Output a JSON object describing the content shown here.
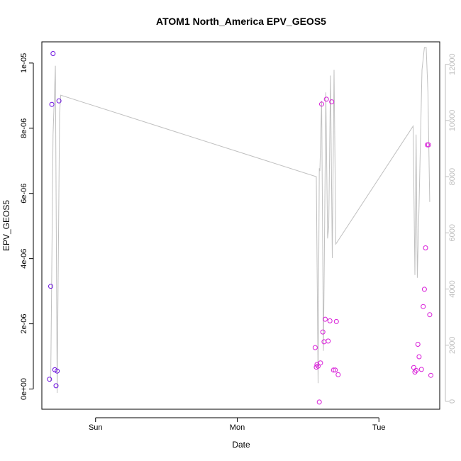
{
  "chart_data": {
    "type": "scatter",
    "title": "ATOM1 North_America EPV_GEOS5",
    "xlabel": "Date",
    "ylabel": "EPV_GEOS5",
    "x_ticks": [
      {
        "label": "Sun",
        "value": 24
      },
      {
        "label": "Mon",
        "value": 48
      },
      {
        "label": "Tue",
        "value": 72
      }
    ],
    "x_range": [
      14.9,
      82.3
    ],
    "y_left": {
      "range": [
        -6.2e-07,
        1.065e-05
      ],
      "ticks": [
        {
          "label": "0e+00",
          "value": 0
        },
        {
          "label": "2e-06",
          "value": 2e-06
        },
        {
          "label": "4e-06",
          "value": 4e-06
        },
        {
          "label": "6e-06",
          "value": 6e-06
        },
        {
          "label": "8e-06",
          "value": 8e-06
        },
        {
          "label": "1e-05",
          "value": 1e-05
        }
      ]
    },
    "y_right": {
      "range": [
        -280,
        12800
      ],
      "ticks": [
        {
          "label": "0",
          "value": 0
        },
        {
          "label": "2000",
          "value": 2000
        },
        {
          "label": "4000",
          "value": 4000
        },
        {
          "label": "6000",
          "value": 6000
        },
        {
          "label": "8000",
          "value": 8000
        },
        {
          "label": "10000",
          "value": 10000
        },
        {
          "label": "12000",
          "value": 12000
        }
      ],
      "color": "#bdbdbd"
    },
    "grid": false,
    "series": [
      {
        "type": "scatter",
        "marker": "open-circle",
        "points": [
          {
            "x": 16.2,
            "y": 3e-07,
            "color": "#6a0dde"
          },
          {
            "x": 16.4,
            "y": 3.15e-06,
            "color": "#6a0dde"
          },
          {
            "x": 16.6,
            "y": 8.73e-06,
            "color": "#6a0dde"
          },
          {
            "x": 16.8,
            "y": 1.029e-05,
            "color": "#6a0dde"
          },
          {
            "x": 17.1,
            "y": 5.9e-07,
            "color": "#6a0dde"
          },
          {
            "x": 17.3,
            "y": 1e-07,
            "color": "#6a0dde"
          },
          {
            "x": 17.5,
            "y": 5.5e-07,
            "color": "#6a0dde"
          },
          {
            "x": 17.8,
            "y": 8.84e-06,
            "color": "#6a0dde"
          },
          {
            "x": 61.2,
            "y": 1.27e-06,
            "color": "#d81bd8"
          },
          {
            "x": 61.4,
            "y": 6.7e-07,
            "color": "#d81bd8"
          },
          {
            "x": 61.5,
            "y": 7.5e-07,
            "color": "#d81bd8"
          },
          {
            "x": 61.7,
            "y": 7e-07,
            "color": "#d81bd8"
          },
          {
            "x": 61.9,
            "y": -4e-07,
            "color": "#d81bd8"
          },
          {
            "x": 62.1,
            "y": 8e-07,
            "color": "#d81bd8"
          },
          {
            "x": 62.3,
            "y": 8.74e-06,
            "color": "#d81bd8"
          },
          {
            "x": 62.5,
            "y": 1.75e-06,
            "color": "#d81bd8"
          },
          {
            "x": 62.7,
            "y": 1.45e-06,
            "color": "#d81bd8"
          },
          {
            "x": 62.9,
            "y": 2.14e-06,
            "color": "#d81bd8"
          },
          {
            "x": 63.1,
            "y": 8.89e-06,
            "color": "#d81bd8"
          },
          {
            "x": 63.4,
            "y": 1.47e-06,
            "color": "#d81bd8"
          },
          {
            "x": 63.7,
            "y": 2.09e-06,
            "color": "#d81bd8"
          },
          {
            "x": 64.0,
            "y": 8.81e-06,
            "color": "#d81bd8"
          },
          {
            "x": 64.3,
            "y": 5.8e-07,
            "color": "#d81bd8"
          },
          {
            "x": 64.6,
            "y": 5.8e-07,
            "color": "#d81bd8"
          },
          {
            "x": 64.8,
            "y": 2.07e-06,
            "color": "#d81bd8"
          },
          {
            "x": 65.1,
            "y": 4.4e-07,
            "color": "#d81bd8"
          },
          {
            "x": 77.9,
            "y": 6.6e-07,
            "color": "#d81bd8"
          },
          {
            "x": 78.1,
            "y": 5.2e-07,
            "color": "#d81bd8"
          },
          {
            "x": 78.3,
            "y": 5.7e-07,
            "color": "#d81bd8"
          },
          {
            "x": 78.6,
            "y": 1.37e-06,
            "color": "#d81bd8"
          },
          {
            "x": 78.8,
            "y": 9.9e-07,
            "color": "#d81bd8"
          },
          {
            "x": 79.2,
            "y": 6e-07,
            "color": "#d81bd8"
          },
          {
            "x": 79.5,
            "y": 2.53e-06,
            "color": "#d81bd8"
          },
          {
            "x": 79.7,
            "y": 3.06e-06,
            "color": "#d81bd8"
          },
          {
            "x": 79.9,
            "y": 4.33e-06,
            "color": "#d81bd8"
          },
          {
            "x": 80.2,
            "y": 7.49e-06,
            "color": "#d81bd8"
          },
          {
            "x": 80.4,
            "y": 7.49e-06,
            "color": "#d81bd8"
          },
          {
            "x": 80.6,
            "y": 2.28e-06,
            "color": "#d81bd8"
          },
          {
            "x": 80.8,
            "y": 4.2e-07,
            "color": "#d81bd8"
          }
        ]
      },
      {
        "type": "line",
        "axis": "right",
        "color": "#c0c0c0",
        "points": [
          {
            "x": 16.4,
            "y": 700
          },
          {
            "x": 16.8,
            "y": 9500
          },
          {
            "x": 17.2,
            "y": 11950
          },
          {
            "x": 17.5,
            "y": 300
          },
          {
            "x": 17.9,
            "y": 10250
          },
          {
            "x": 18.1,
            "y": 10900
          },
          {
            "x": 61.4,
            "y": 8000
          },
          {
            "x": 61.7,
            "y": 650
          },
          {
            "x": 61.9,
            "y": 8300
          },
          {
            "x": 62.0,
            "y": 8200
          },
          {
            "x": 62.3,
            "y": 10700
          },
          {
            "x": 62.6,
            "y": 1800
          },
          {
            "x": 62.8,
            "y": 6200
          },
          {
            "x": 63.0,
            "y": 11000
          },
          {
            "x": 63.3,
            "y": 5800
          },
          {
            "x": 63.5,
            "y": 6200
          },
          {
            "x": 63.8,
            "y": 11600
          },
          {
            "x": 64.1,
            "y": 5100
          },
          {
            "x": 64.4,
            "y": 11800
          },
          {
            "x": 64.7,
            "y": 5600
          },
          {
            "x": 77.8,
            "y": 9800
          },
          {
            "x": 78.1,
            "y": 4500
          },
          {
            "x": 78.3,
            "y": 9500
          },
          {
            "x": 78.5,
            "y": 4400
          },
          {
            "x": 78.8,
            "y": 7000
          },
          {
            "x": 79.3,
            "y": 11800
          },
          {
            "x": 79.7,
            "y": 12600
          },
          {
            "x": 80.0,
            "y": 12600
          },
          {
            "x": 80.3,
            "y": 11000
          },
          {
            "x": 80.6,
            "y": 7100
          }
        ]
      }
    ]
  }
}
